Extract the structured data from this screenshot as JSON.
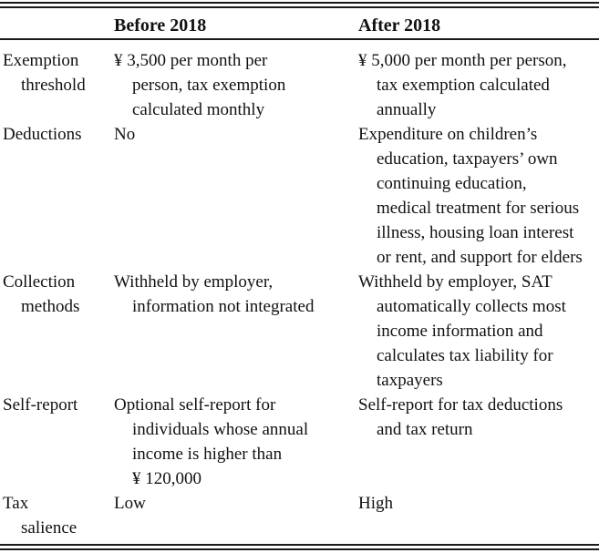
{
  "colors": {
    "text": "#111111",
    "rule": "#1a1a1a"
  },
  "table": {
    "column_headers": {
      "label": "",
      "before": "Before 2018",
      "after": "After 2018"
    },
    "rows": [
      {
        "label": [
          "Exemption",
          "threshold"
        ],
        "before": [
          "¥ 3,500 per month per",
          "person, tax exemption",
          "calculated monthly"
        ],
        "after": [
          "¥ 5,000 per month per person,",
          "tax exemption calculated",
          "annually"
        ]
      },
      {
        "label": [
          "Deductions"
        ],
        "before": [
          "No"
        ],
        "after": [
          "Expenditure on children’s",
          "education, taxpayers’ own",
          "continuing education,",
          "medical treatment for serious",
          "illness, housing loan interest",
          "or rent, and support for elders"
        ]
      },
      {
        "label": [
          "Collection",
          "methods"
        ],
        "before": [
          "Withheld by employer,",
          "information not integrated"
        ],
        "after": [
          "Withheld by employer, SAT",
          "automatically collects most",
          "income information and",
          "calculates tax liability for",
          "taxpayers"
        ]
      },
      {
        "label": [
          "Self-report"
        ],
        "before": [
          "Optional self-report for",
          "individuals whose annual",
          "income is higher than",
          "¥ 120,000"
        ],
        "after": [
          "Self-report for tax deductions",
          "and tax return"
        ]
      },
      {
        "label": [
          "Tax",
          "salience"
        ],
        "before": [
          "Low"
        ],
        "after": [
          "High"
        ]
      }
    ]
  }
}
